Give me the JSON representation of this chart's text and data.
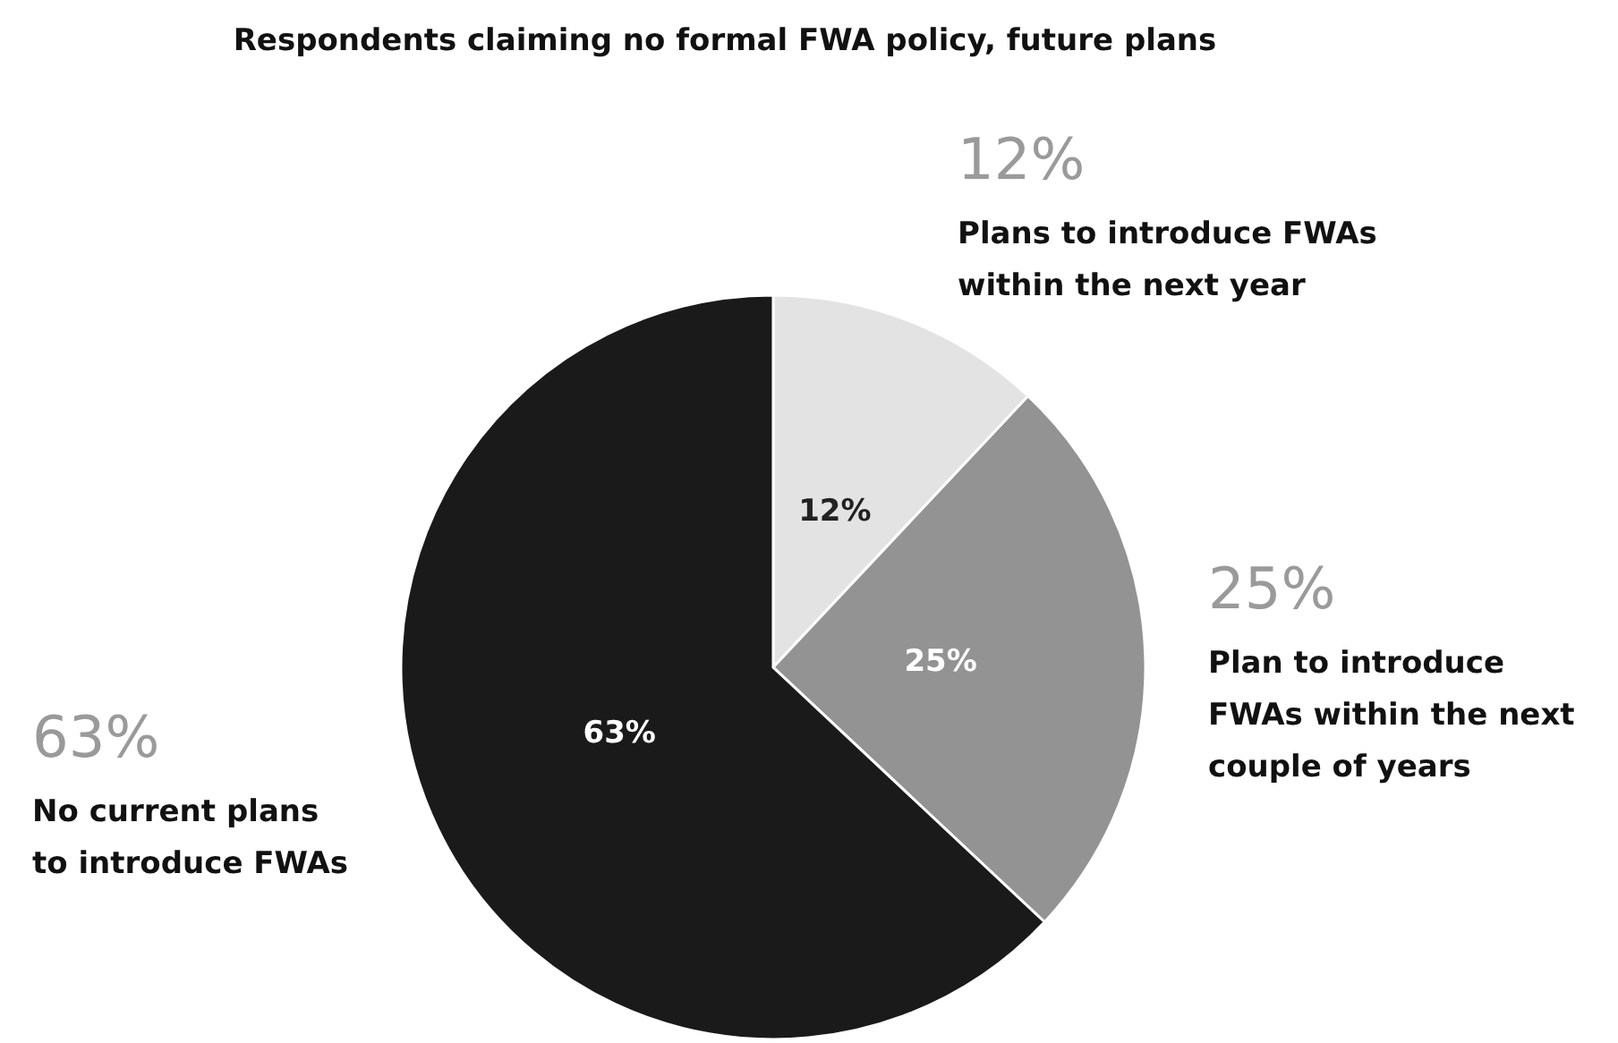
{
  "chart_data": {
    "type": "pie",
    "title": "Respondents claiming no formal FWA policy, future plans",
    "categories": [
      "Plans to introduce FWAs within the next year",
      "Plan to introduce FWAs within the next couple of years",
      "No current plans to introduce FWAs"
    ],
    "values": [
      12,
      25,
      63
    ],
    "value_labels": [
      "12%",
      "25%",
      "63%"
    ],
    "colors": [
      "#e3e3e3",
      "#939393",
      "#1a1a1a"
    ]
  }
}
